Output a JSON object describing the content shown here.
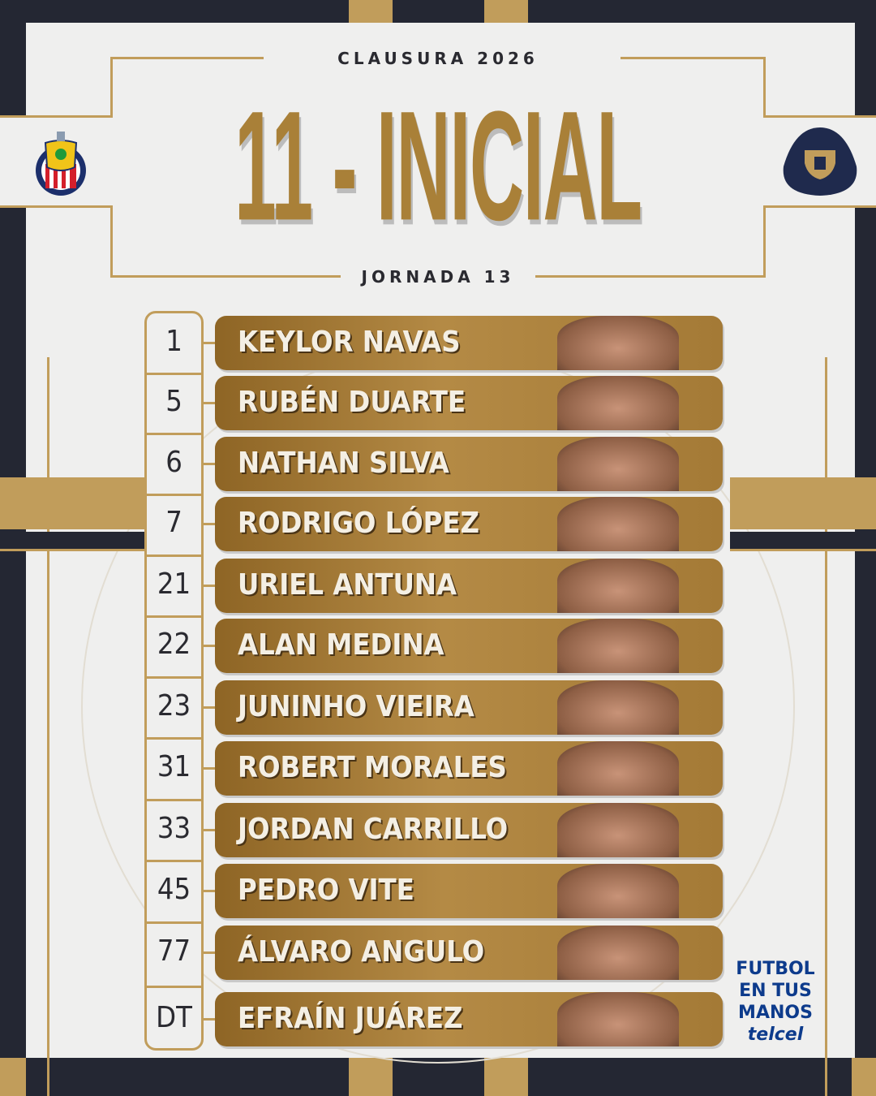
{
  "header": {
    "season": "CLAUSURA 2026",
    "title": "11 - INICIAL",
    "matchday": "JORNADA 13"
  },
  "teams": {
    "home": "Club Deportivo Guadalajara",
    "away": "Pumas UNAM"
  },
  "colors": {
    "navy": "#242733",
    "gold": "#c19d5b",
    "paper": "#efefee",
    "sponsor": "#0d3b8c"
  },
  "lineup": [
    {
      "number": "1",
      "name": "KEYLOR NAVAS"
    },
    {
      "number": "5",
      "name": "RUBÉN DUARTE"
    },
    {
      "number": "6",
      "name": "NATHAN SILVA"
    },
    {
      "number": "7",
      "name": "RODRIGO LÓPEZ"
    },
    {
      "number": "21",
      "name": "URIEL ANTUNA"
    },
    {
      "number": "22",
      "name": "ALAN MEDINA"
    },
    {
      "number": "23",
      "name": "JUNINHO VIEIRA"
    },
    {
      "number": "31",
      "name": "ROBERT MORALES"
    },
    {
      "number": "33",
      "name": "JORDAN CARRILLO"
    },
    {
      "number": "45",
      "name": "PEDRO VITE"
    },
    {
      "number": "77",
      "name": "ÁLVARO ANGULO"
    },
    {
      "number": "DT",
      "name": "EFRAÍN JUÁREZ"
    }
  ],
  "sponsor": {
    "line1": "FUTBOL",
    "line2": "EN TUS",
    "line3": "MANOS",
    "brand": "telcel"
  }
}
